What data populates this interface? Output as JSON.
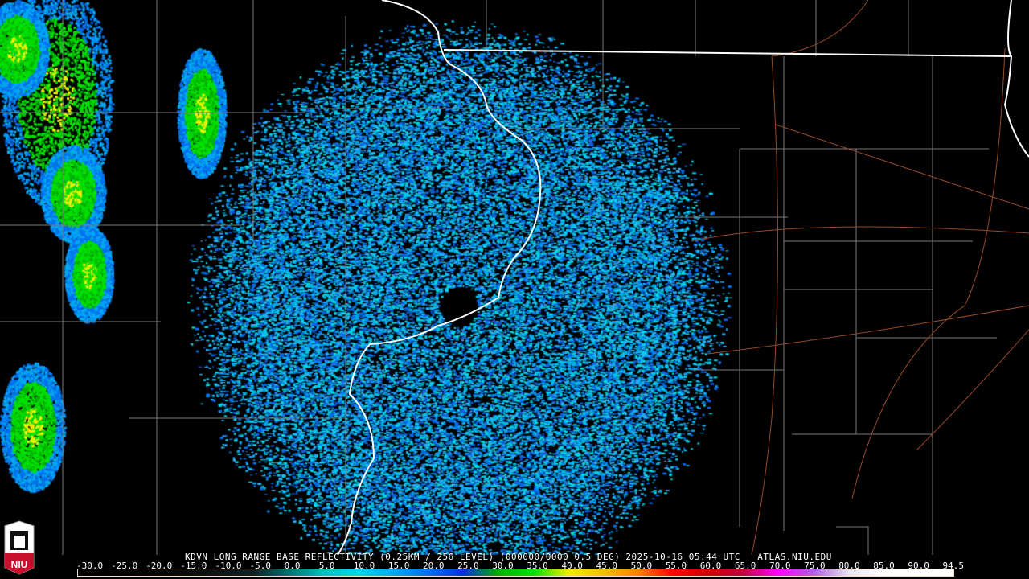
{
  "product_title": "KDVN LONG RANGE BASE REFLECTIVITY (0.25KM / 256 LEVEL) (000000/0000 0.5 DEG) 2025-10-16 05:44 UTC   ATLAS.NIU.EDU",
  "logo_text": "NIU",
  "legend": {
    "labels": [
      "-30.0",
      "-25.0",
      "-20.0",
      "-15.0",
      "-10.0",
      "-5.0",
      "0.0",
      "5.0",
      "10.0",
      "15.0",
      "20.0",
      "25.0",
      "30.0",
      "35.0",
      "40.0",
      "45.0",
      "50.0",
      "55.0",
      "60.0",
      "65.0",
      "70.0",
      "75.0",
      "80.0",
      "85.0",
      "90.0",
      "94.5"
    ],
    "colors": [
      "#000000",
      "#000000",
      "#050505",
      "#0a0a0a",
      "#101515",
      "#102020",
      "#007070",
      "#00c0c0",
      "#00d8e8",
      "#00a8f0",
      "#0070f0",
      "#0030e0",
      "#00b000",
      "#00e000",
      "#f0f000",
      "#f0c000",
      "#ff8000",
      "#ff0000",
      "#d00000",
      "#c00040",
      "#ff00ff",
      "#b060e0",
      "#e8e0f0",
      "#ffffff",
      "#ffffff",
      "#ffffff"
    ]
  },
  "colors": {
    "state_border": "#ffffff",
    "county_line": "#808080",
    "highway": "#a0502a"
  }
}
